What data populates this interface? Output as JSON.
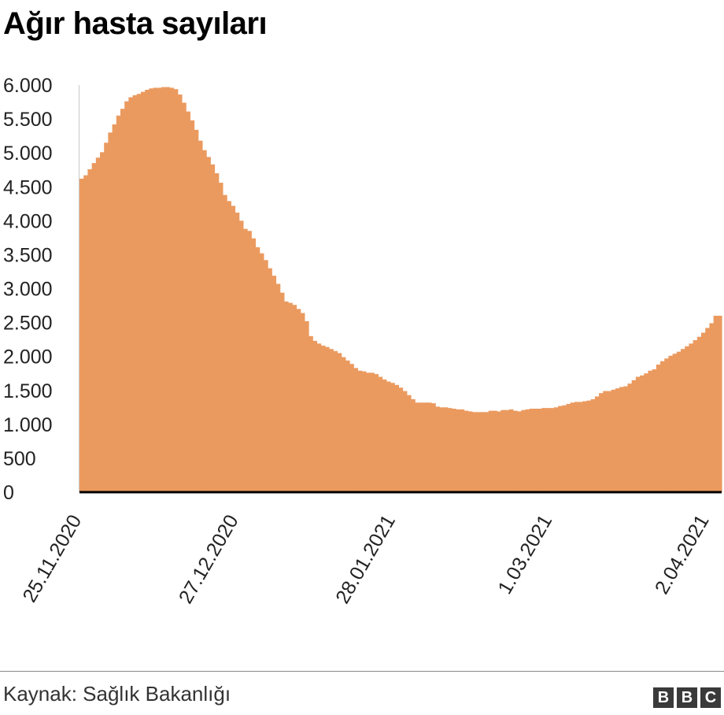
{
  "chart_data": {
    "type": "area",
    "title": "Ağır hasta sayıları",
    "xlabel": "",
    "ylabel": "",
    "ylim": [
      0,
      6000
    ],
    "yticks": [
      0,
      500,
      1000,
      1500,
      2000,
      2500,
      3000,
      3500,
      4000,
      4500,
      5000,
      5500,
      6000
    ],
    "ytick_labels": [
      "0",
      "500",
      "1.000",
      "1.500",
      "2.000",
      "2.500",
      "3.000",
      "3.500",
      "4.000",
      "4.500",
      "5.000",
      "5.500",
      "6.000"
    ],
    "x_start": "2020-11-25",
    "x_end": "2021-04-04",
    "xtick_labels": [
      "25.11.2020",
      "27.12.2020",
      "28.01.2021",
      "1.03.2021",
      "2.04.2021"
    ],
    "xtick_dates": [
      "2020-11-25",
      "2020-12-27",
      "2021-01-28",
      "2021-03-01",
      "2021-04-02"
    ],
    "grid": false,
    "fill_color": "#eb9a5f",
    "axis_color": "#000000",
    "series": [
      {
        "values": [
          4620,
          4670,
          4760,
          4850,
          4930,
          5010,
          5150,
          5300,
          5420,
          5550,
          5650,
          5760,
          5820,
          5850,
          5870,
          5900,
          5930,
          5950,
          5960,
          5960,
          5970,
          5970,
          5960,
          5940,
          5860,
          5740,
          5610,
          5480,
          5340,
          5180,
          5040,
          4940,
          4830,
          4700,
          4560,
          4380,
          4290,
          4220,
          4120,
          4000,
          3880,
          3850,
          3740,
          3610,
          3520,
          3420,
          3300,
          3190,
          3070,
          2940,
          2810,
          2790,
          2760,
          2700,
          2640,
          2520,
          2300,
          2230,
          2190,
          2160,
          2140,
          2110,
          2080,
          2050,
          1990,
          1940,
          1890,
          1830,
          1790,
          1780,
          1760,
          1760,
          1740,
          1700,
          1660,
          1630,
          1610,
          1580,
          1540,
          1490,
          1430,
          1370,
          1320,
          1320,
          1320,
          1320,
          1310,
          1260,
          1250,
          1250,
          1240,
          1230,
          1220,
          1220,
          1200,
          1190,
          1180,
          1180,
          1180,
          1180,
          1200,
          1200,
          1190,
          1210,
          1210,
          1220,
          1200,
          1190,
          1210,
          1220,
          1230,
          1230,
          1230,
          1240,
          1240,
          1240,
          1250,
          1270,
          1280,
          1300,
          1320,
          1330,
          1330,
          1340,
          1350,
          1370,
          1410,
          1460,
          1490,
          1490,
          1510,
          1530,
          1550,
          1560,
          1600,
          1650,
          1700,
          1720,
          1750,
          1790,
          1810,
          1880,
          1930,
          1970,
          2010,
          2040,
          2070,
          2110,
          2150,
          2190,
          2240,
          2290,
          2350,
          2420,
          2490,
          2600,
          2600
        ]
      }
    ]
  },
  "source": "Kaynak: Sağlık Bakanlığı",
  "logo": [
    "B",
    "B",
    "C"
  ]
}
